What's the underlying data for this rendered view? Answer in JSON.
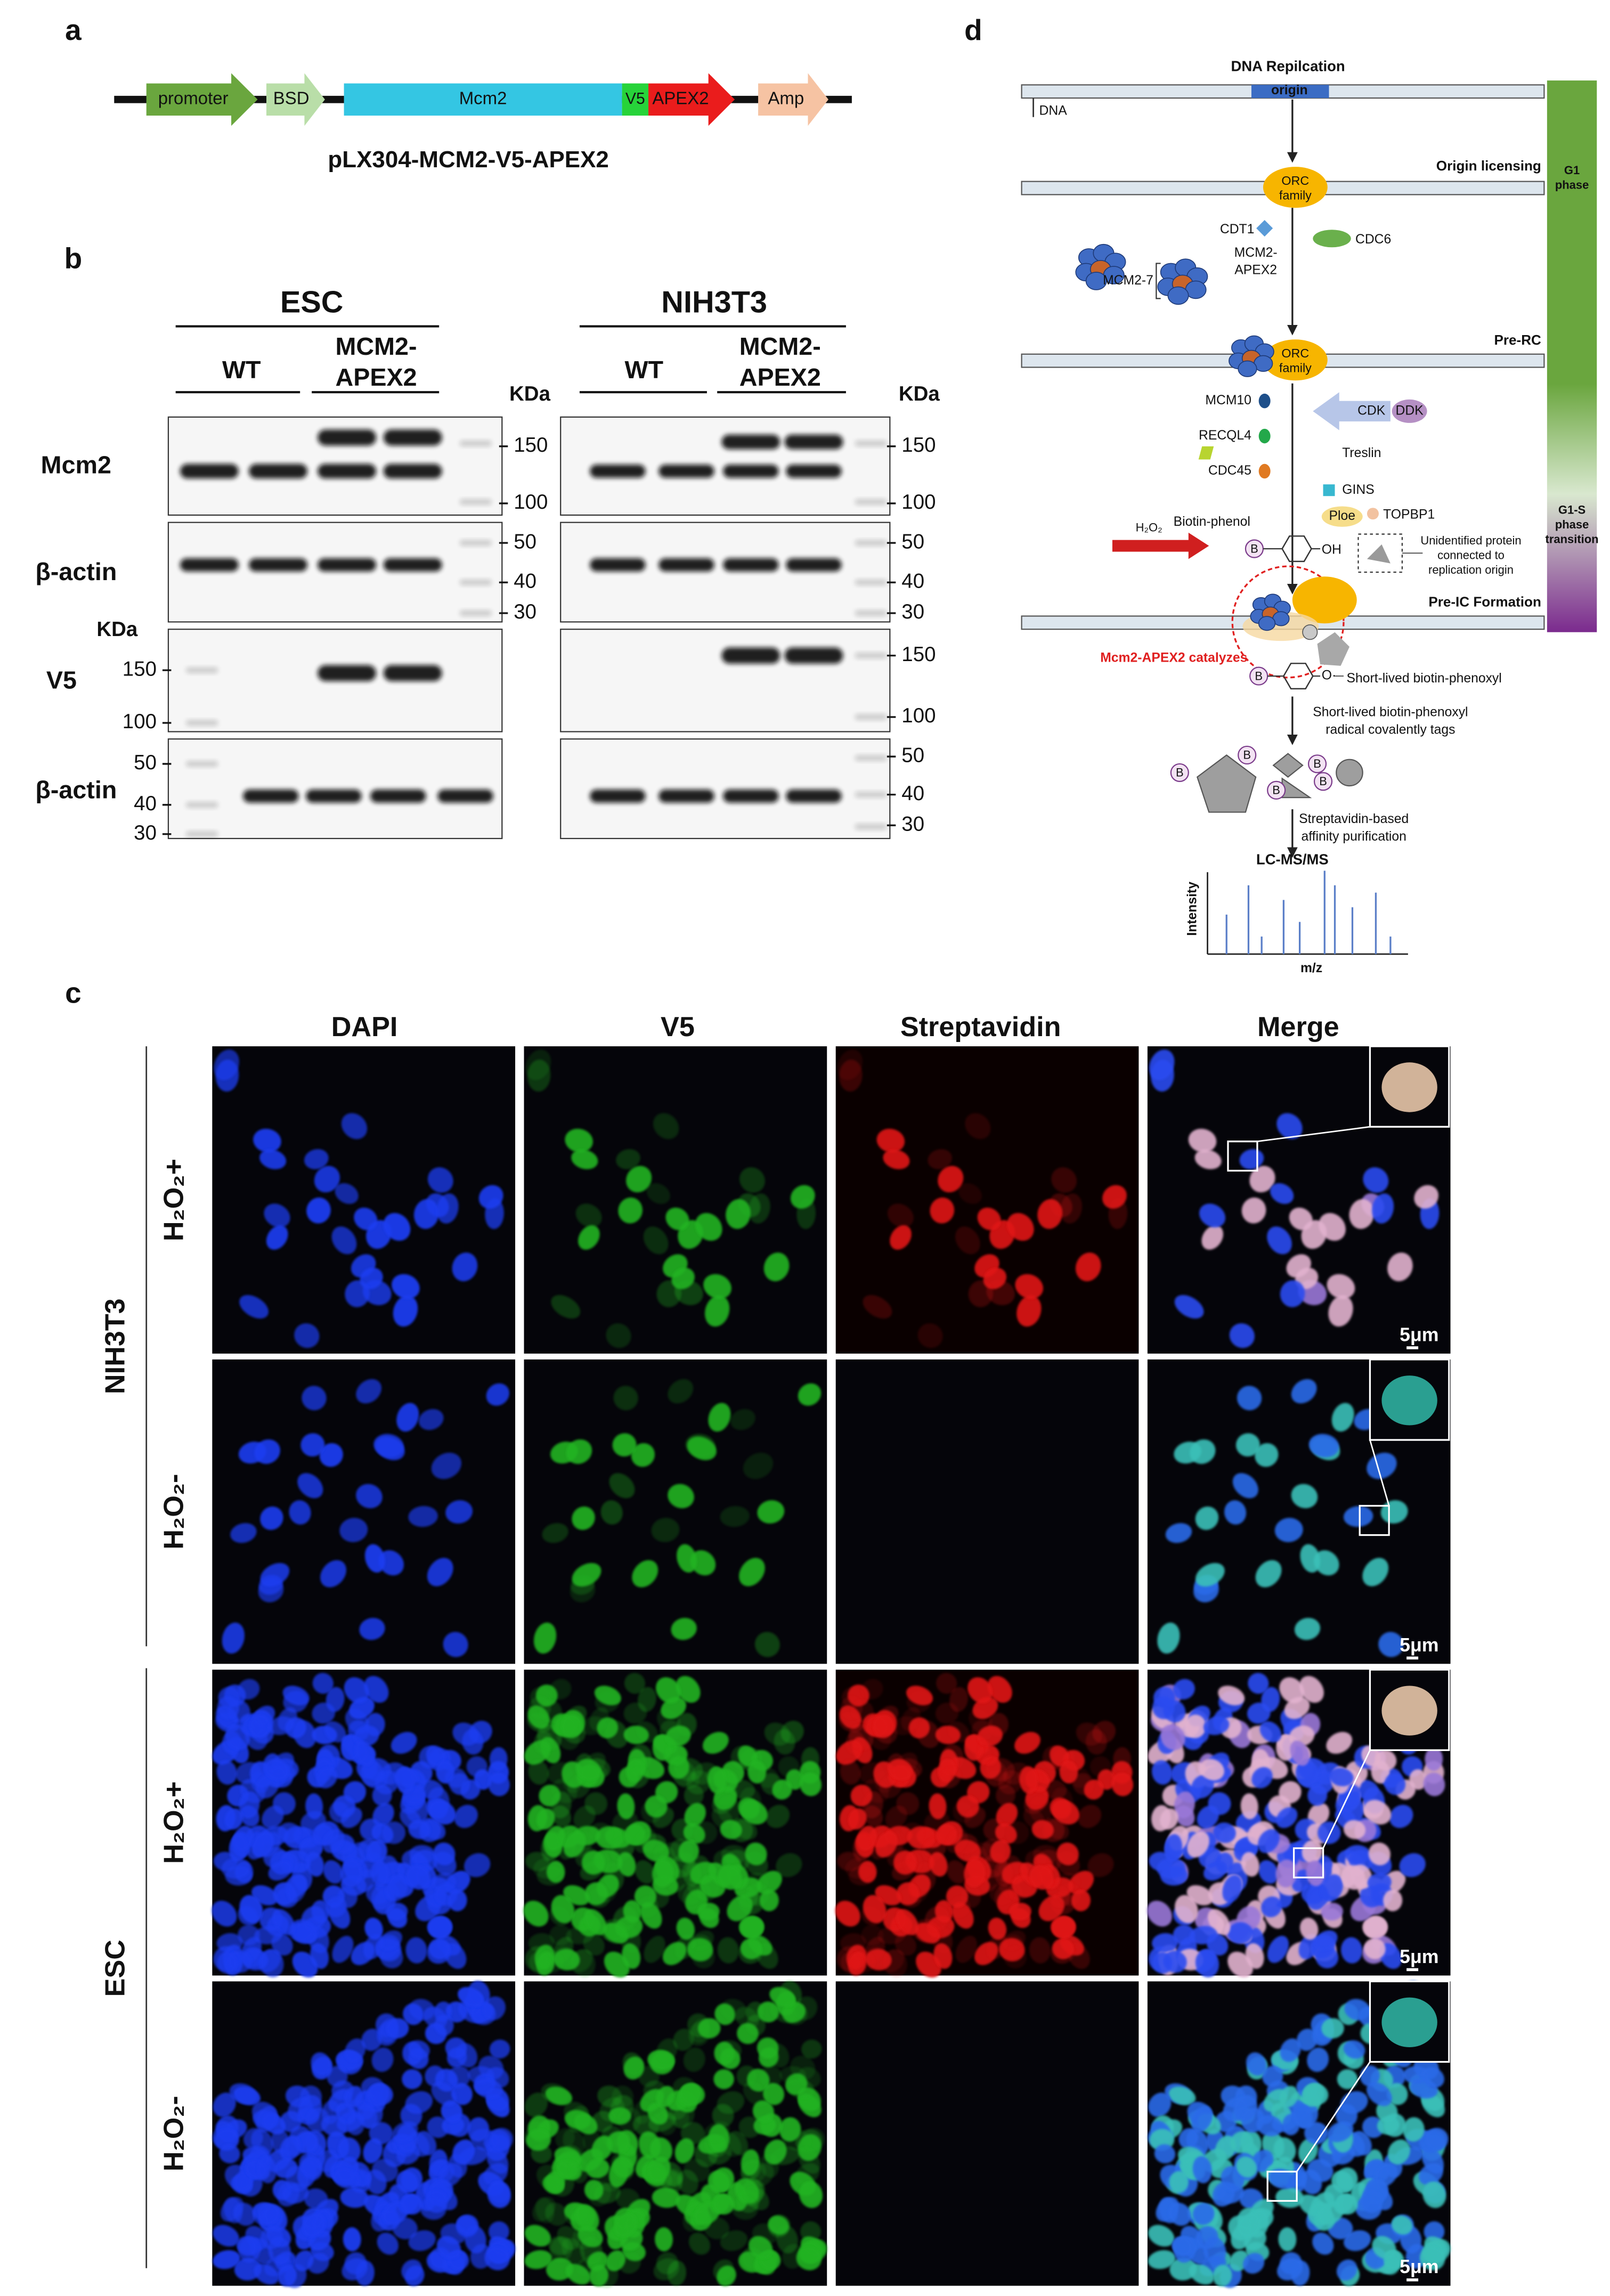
{
  "panel_labels": {
    "a": "a",
    "b": "b",
    "c": "c",
    "d": "d"
  },
  "panel_a": {
    "segments": [
      "promoter",
      "BSD",
      "Mcm2",
      "V5",
      "APEX2",
      "Amp"
    ],
    "caption": "pLX304-MCM2-V5-APEX2"
  },
  "panel_b": {
    "cell_lines": [
      "ESC",
      "NIH3T3"
    ],
    "wt": "WT",
    "mcm2_apex2": [
      "MCM2-",
      "APEX2"
    ],
    "kda": "KDa",
    "rows": [
      "Mcm2",
      "β-actin",
      "V5",
      "β-actin"
    ],
    "esc_left_markers": [
      "150",
      "100",
      "50",
      "40",
      "30"
    ],
    "esc_right_markers": [
      "150",
      "100",
      "50",
      "40",
      "30"
    ],
    "nih3t3_right_markers": [
      "150",
      "100",
      "50",
      "40",
      "30",
      "150",
      "100",
      "50",
      "40",
      "30"
    ]
  },
  "panel_c": {
    "columns": [
      "DAPI",
      "V5",
      "Streptavidin",
      "Merge"
    ],
    "conditions": [
      "H₂O₂+",
      "H₂O₂-"
    ],
    "cell_lines": [
      "NIH3T3",
      "ESC"
    ],
    "scale_bar": "5μm"
  },
  "panel_d": {
    "title": "DNA Repilcation",
    "origin": "origin",
    "dna": "DNA",
    "stages": [
      "Origin licensing",
      "Pre-RC",
      "Pre-IC Formation"
    ],
    "g1_phase": [
      "G1",
      "phase"
    ],
    "g1s_phase": [
      "G1-S",
      "phase",
      "transition"
    ],
    "orc": [
      "ORC",
      "family"
    ],
    "cdt1": "CDT1",
    "cdc6": "CDC6",
    "mcm2_apex2": [
      "MCM2-",
      "APEX2"
    ],
    "mcm2_7": "MCM2-7",
    "factors": [
      "MCM10",
      "RECQL4",
      "CDC45",
      "Treslin",
      "GINS",
      "Ploe",
      "TOPBP1"
    ],
    "cdk": "CDK",
    "ddk": "DDK",
    "h2o2": "H₂O₂",
    "biotin_phenol": "Biotin-phenol",
    "oh": "OH",
    "b": "B",
    "unidentified": [
      "Unidentified protein",
      "connected to",
      "replication origin"
    ],
    "catalyzes": "Mcm2-APEX2 catalyzes",
    "phenoxyl": "Short-lived biotin-phenoxyl",
    "radical": "O·",
    "tags": [
      "Short-lived biotin-phenoxyl",
      "radical covalently tags"
    ],
    "purification": [
      "Streptavidin-based",
      "affinity purification"
    ],
    "lcms": "LC-MS/MS",
    "intensity": "Intensity",
    "mz": "m/z"
  }
}
